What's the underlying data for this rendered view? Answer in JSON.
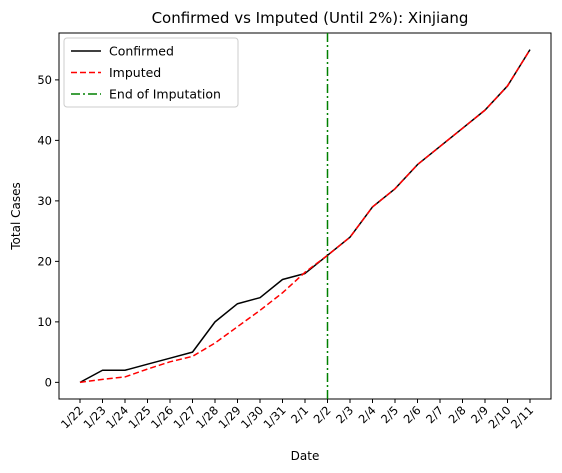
{
  "chart_data": {
    "type": "line",
    "title": "Confirmed vs Imputed (Until 2%): Xinjiang",
    "xlabel": "Date",
    "ylabel": "Total Cases",
    "categories": [
      "1/22",
      "1/23",
      "1/24",
      "1/25",
      "1/26",
      "1/27",
      "1/28",
      "1/29",
      "1/30",
      "1/31",
      "2/1",
      "2/2",
      "2/3",
      "2/4",
      "2/5",
      "2/6",
      "2/7",
      "2/8",
      "2/9",
      "2/10",
      "2/11"
    ],
    "series": [
      {
        "name": "Confirmed",
        "color": "#000000",
        "style": "solid",
        "values": [
          0,
          2,
          2,
          3,
          4,
          5,
          10,
          13,
          14,
          17,
          18,
          21,
          24,
          29,
          32,
          36,
          39,
          42,
          45,
          49,
          55
        ]
      },
      {
        "name": "Imputed",
        "color": "#ff0000",
        "style": "dashed",
        "values": [
          0,
          0.5,
          0.9,
          2.2,
          3.4,
          4.3,
          6.5,
          9.2,
          11.9,
          14.8,
          18.2,
          21,
          24,
          29,
          32,
          36,
          39,
          42,
          45,
          49,
          55
        ]
      }
    ],
    "annotations": [
      {
        "type": "vline",
        "name": "End of Imputation",
        "x": "2/2",
        "color": "#008000",
        "style": "dashdot"
      }
    ],
    "ylim": [
      -2.75,
      57.75
    ],
    "yticks": [
      0,
      10,
      20,
      30,
      40,
      50
    ],
    "grid": false,
    "legend": "top-left"
  }
}
